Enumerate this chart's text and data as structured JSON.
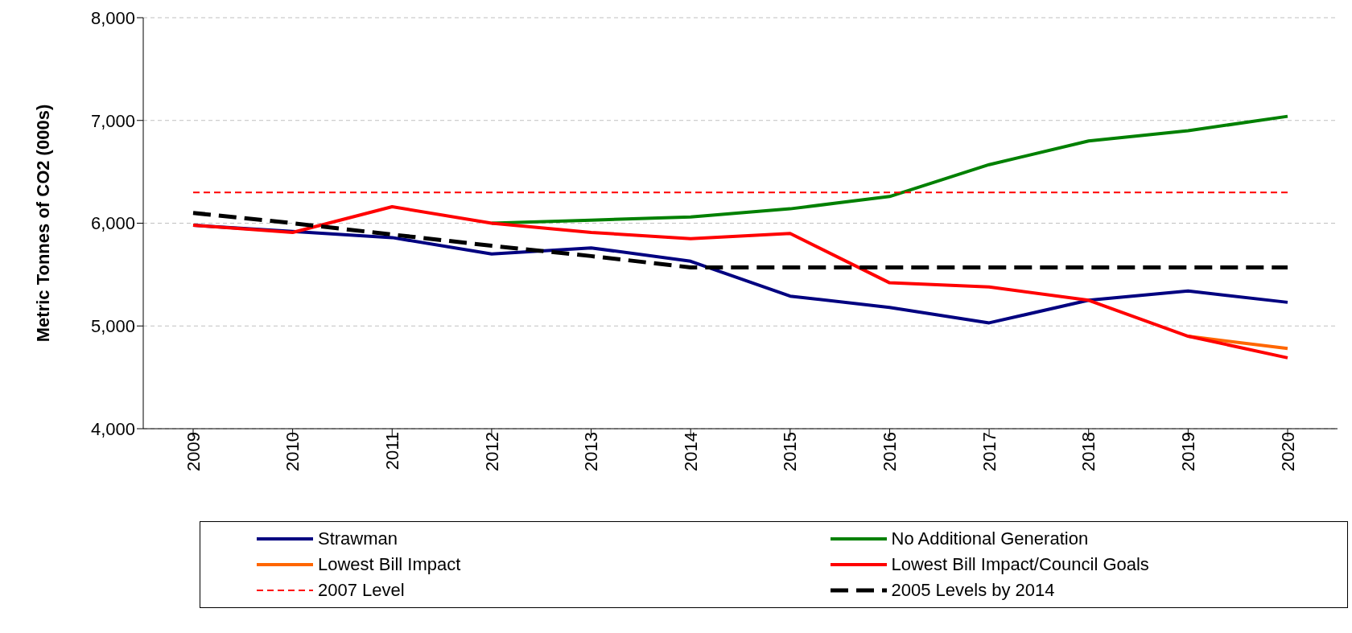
{
  "chart_data": {
    "type": "line",
    "ylabel": "Metric Tonnes of CO2 (000s)",
    "categories": [
      "2009",
      "2010",
      "2011",
      "2012",
      "2013",
      "2014",
      "2015",
      "2016",
      "2017",
      "2018",
      "2019",
      "2020"
    ],
    "series": [
      {
        "name": "Strawman",
        "color": "#000080",
        "values": [
          5980,
          5920,
          5860,
          5700,
          5760,
          5630,
          5290,
          5180,
          5030,
          5250,
          5340,
          5230
        ]
      },
      {
        "name": "No Additional Generation",
        "color": "#008000",
        "values": [
          null,
          null,
          null,
          6000,
          6030,
          6060,
          6140,
          6260,
          6570,
          6800,
          6900,
          7040
        ]
      },
      {
        "name": "Lowest Bill Impact",
        "color": "#ff6600",
        "values": [
          null,
          null,
          null,
          null,
          null,
          null,
          null,
          null,
          null,
          null,
          4900,
          4780
        ]
      },
      {
        "name": "Lowest Bill Impact/Council Goals",
        "color": "#ff0000",
        "values": [
          5980,
          5910,
          6160,
          6000,
          5910,
          5850,
          5900,
          5420,
          5380,
          5250,
          4900,
          4690
        ]
      },
      {
        "name": "2007 Level",
        "color": "#ff0000",
        "line_style": "dashed",
        "values": [
          6300,
          6300,
          6300,
          6300,
          6300,
          6300,
          6300,
          6300,
          6300,
          6300,
          6300,
          6300
        ]
      },
      {
        "name": "2005 Levels by 2014",
        "color": "#000000",
        "line_style": "dashed",
        "values": [
          6100,
          6000,
          5890,
          5780,
          5680,
          5570,
          5570,
          5570,
          5570,
          5570,
          5570,
          5570
        ]
      }
    ],
    "ylim": [
      4000,
      8000
    ],
    "yticks": [
      {
        "value": 4000,
        "label": "4,000"
      },
      {
        "value": 5000,
        "label": "5,000"
      },
      {
        "value": 6000,
        "label": "6,000"
      },
      {
        "value": 7000,
        "label": "7,000"
      },
      {
        "value": 8000,
        "label": "8,000"
      }
    ],
    "grid": "y",
    "legend": "bottom",
    "marker": "none"
  }
}
